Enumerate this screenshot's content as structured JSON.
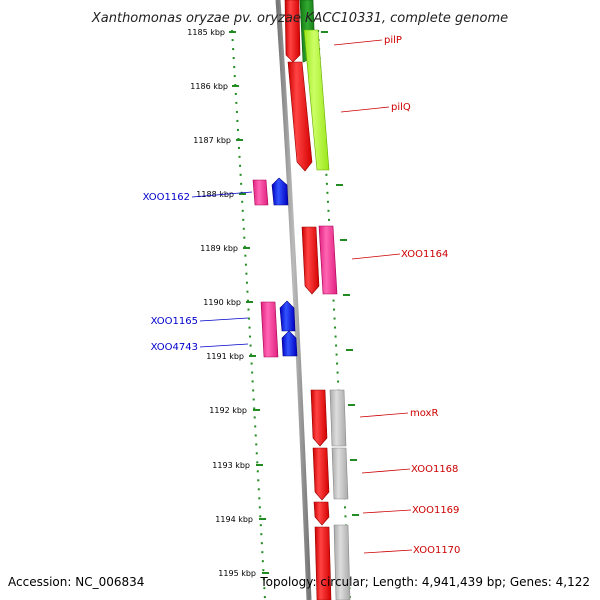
{
  "title": "Xanthomonas oryzae pv. oryzae KACC10331, complete genome",
  "footer": {
    "accession": "Accession: NC_006834",
    "topology": "Topology: circular; Length: 4,941,439 bp; Genes: 4,122"
  },
  "ruler_ticks": [
    {
      "label": "1185 kbp",
      "kbp": 1185
    },
    {
      "label": "1186 kbp",
      "kbp": 1186
    },
    {
      "label": "1187 kbp",
      "kbp": 1187
    },
    {
      "label": "1188 kbp",
      "kbp": 1188
    },
    {
      "label": "1189 kbp",
      "kbp": 1189
    },
    {
      "label": "1190 kbp",
      "kbp": 1190
    },
    {
      "label": "1191 kbp",
      "kbp": 1191
    },
    {
      "label": "1192 kbp",
      "kbp": 1192
    },
    {
      "label": "1193 kbp",
      "kbp": 1193
    },
    {
      "label": "1194 kbp",
      "kbp": 1194
    },
    {
      "label": "1195 kbp",
      "kbp": 1195
    }
  ],
  "gene_labels": [
    {
      "text": "pilP",
      "color": "#cc0000"
    },
    {
      "text": "pilQ",
      "color": "#cc0000"
    },
    {
      "text": "XOO1162",
      "color": "#0000cc"
    },
    {
      "text": "XOO1164",
      "color": "#cc0000"
    },
    {
      "text": "XOO1165",
      "color": "#0000cc"
    },
    {
      "text": "XOO4743",
      "color": "#0000cc"
    },
    {
      "text": "moxR",
      "color": "#cc0000"
    },
    {
      "text": "XOO1168",
      "color": "#cc0000"
    },
    {
      "text": "XOO1169",
      "color": "#cc0000"
    },
    {
      "text": "XOO1170",
      "color": "#cc0000"
    }
  ],
  "colors": {
    "forward_cds": "#ff0000",
    "reverse_cds": "#0000ff",
    "forward_cog": "#ff3399",
    "reverse_cog": "#ff3399",
    "pil_cog": "#aaff33",
    "grey_cog": "#bbbbbb",
    "backbone": "#888888",
    "ruler_dots": "#228B22"
  }
}
